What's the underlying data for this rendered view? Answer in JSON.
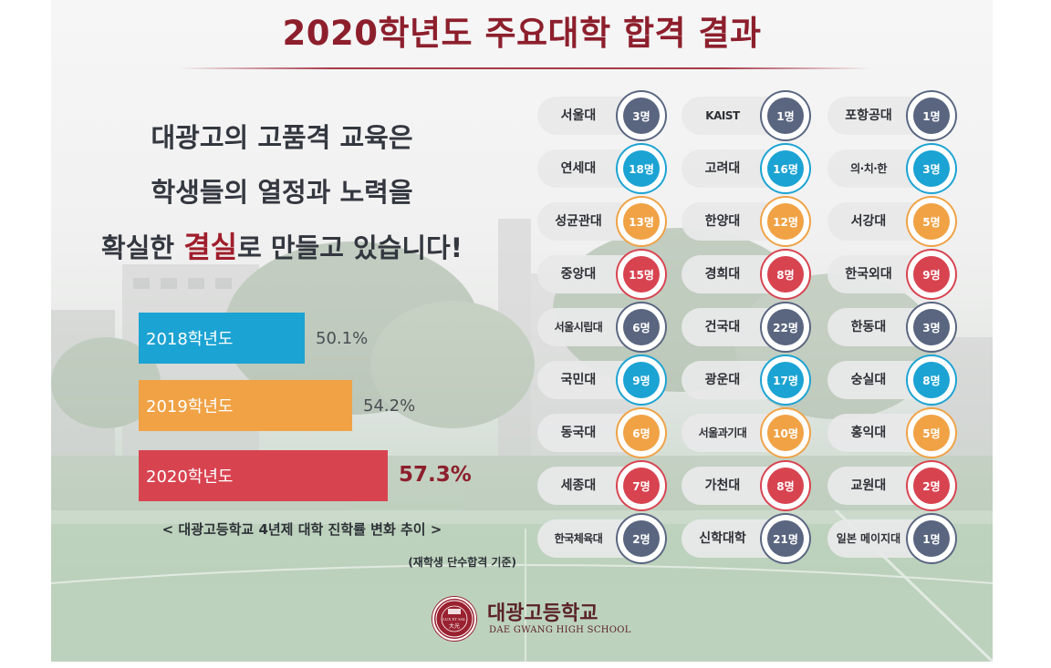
{
  "title": "2020학년도 주요대학 합격 결과",
  "slogan": {
    "line1": "대광고의 고품격 교육은",
    "line2": "학생들의 열정과 노력을",
    "line3_prefix": "확실한 ",
    "line3_highlight": "결실",
    "line3_suffix": "로 만들고 있습니다!"
  },
  "rate_chart": {
    "bars": [
      {
        "label": "2018학년도",
        "value_label": "50.1%",
        "value": 50.1,
        "color": "#1ba3d3"
      },
      {
        "label": "2019학년도",
        "value_label": "54.2%",
        "value": 54.2,
        "color": "#f0a245"
      },
      {
        "label": "2020학년도",
        "value_label": "57.3%",
        "value": 57.3,
        "color": "#d84350"
      }
    ],
    "caption": "< 대광고등학교 4년제 대학 진학률 변화 추이 >",
    "subcaption": "(재학생 단수합격 기준)"
  },
  "universities": [
    {
      "name": "서울대",
      "count": "3명",
      "color": "#5a6680"
    },
    {
      "name": "KAIST",
      "count": "1명",
      "color": "#5a6680"
    },
    {
      "name": "포항공대",
      "count": "1명",
      "color": "#5a6680"
    },
    {
      "name": "연세대",
      "count": "18명",
      "color": "#1ba3d3"
    },
    {
      "name": "고려대",
      "count": "16명",
      "color": "#1ba3d3"
    },
    {
      "name": "의·치·한",
      "count": "3명",
      "color": "#1ba3d3"
    },
    {
      "name": "성균관대",
      "count": "13명",
      "color": "#f0a245"
    },
    {
      "name": "한양대",
      "count": "12명",
      "color": "#f0a245"
    },
    {
      "name": "서강대",
      "count": "5명",
      "color": "#f0a245"
    },
    {
      "name": "중앙대",
      "count": "15명",
      "color": "#d84350"
    },
    {
      "name": "경희대",
      "count": "8명",
      "color": "#d84350"
    },
    {
      "name": "한국외대",
      "count": "9명",
      "color": "#d84350"
    },
    {
      "name": "서울시립대",
      "count": "6명",
      "color": "#5a6680"
    },
    {
      "name": "건국대",
      "count": "22명",
      "color": "#5a6680"
    },
    {
      "name": "한동대",
      "count": "3명",
      "color": "#5a6680"
    },
    {
      "name": "국민대",
      "count": "9명",
      "color": "#1ba3d3"
    },
    {
      "name": "광운대",
      "count": "17명",
      "color": "#1ba3d3"
    },
    {
      "name": "숭실대",
      "count": "8명",
      "color": "#1ba3d3"
    },
    {
      "name": "동국대",
      "count": "6명",
      "color": "#f0a245"
    },
    {
      "name": "서울과기대",
      "count": "10명",
      "color": "#f0a245"
    },
    {
      "name": "홍익대",
      "count": "5명",
      "color": "#f0a245"
    },
    {
      "name": "세종대",
      "count": "7명",
      "color": "#d84350"
    },
    {
      "name": "가천대",
      "count": "8명",
      "color": "#d84350"
    },
    {
      "name": "교원대",
      "count": "2명",
      "color": "#d84350"
    },
    {
      "name": "한국체육대",
      "count": "2명",
      "color": "#5a6680"
    },
    {
      "name": "신학대학",
      "count": "21명",
      "color": "#5a6680"
    },
    {
      "name": "일본 메이지대",
      "count": "1명",
      "color": "#5a6680"
    }
  ],
  "logo": {
    "name": "대광고등학교",
    "english": "DAE GWANG HIGH SCHOOL",
    "seal_text": "LUX ET SAL",
    "seal_mark": "大光"
  }
}
